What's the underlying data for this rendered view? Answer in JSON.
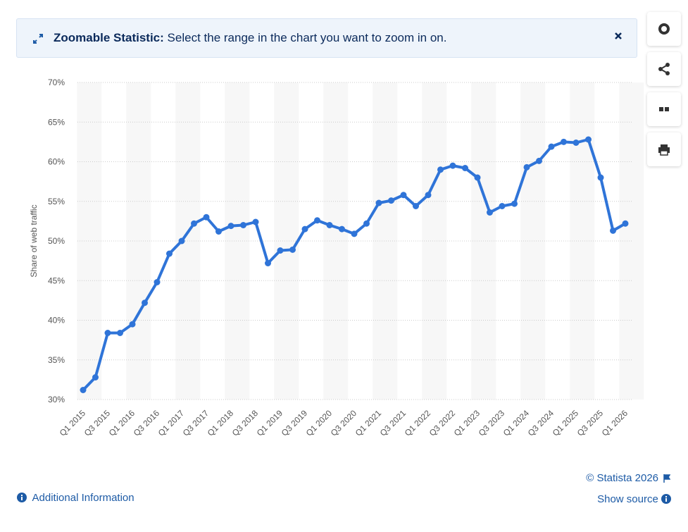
{
  "banner": {
    "title": "Zoomable Statistic:",
    "text": "Select the range in the chart you want to zoom in on."
  },
  "chart_data": {
    "type": "line",
    "y_label": "Share of web traffic",
    "categories": [
      "Q1 2015",
      null,
      "Q3 2015",
      null,
      "Q1 2016",
      null,
      "Q3 2016",
      null,
      "Q1 2017",
      null,
      "Q3 2017",
      null,
      "Q1 2018",
      null,
      "Q3 2018",
      null,
      "Q1 2019",
      null,
      "Q3 2019",
      null,
      "Q1 2020",
      null,
      "Q3 2020",
      null,
      "Q1 2021",
      null,
      "Q3 2021",
      null,
      "Q1 2022",
      null,
      "Q3 2022",
      null,
      "Q1 2023",
      null,
      "Q3 2023",
      null,
      "Q1 2024",
      null,
      "Q3 2024",
      null,
      "Q1 2025",
      null,
      "Q3 2025",
      null,
      "Q1 2026"
    ],
    "series": [
      {
        "name": "Share of web traffic",
        "color": "#2f74d8",
        "values": [
          31.2,
          32.8,
          38.4,
          38.4,
          39.5,
          42.2,
          44.8,
          48.4,
          50.0,
          52.2,
          53.0,
          51.2,
          51.9,
          52.0,
          52.4,
          47.2,
          48.8,
          48.9,
          51.5,
          52.6,
          52.0,
          51.5,
          50.9,
          52.2,
          54.8,
          55.1,
          55.8,
          54.4,
          55.8,
          59.0,
          59.5,
          59.2,
          58.0,
          53.6,
          54.4,
          54.7,
          59.3,
          60.1,
          61.9,
          62.5,
          62.4,
          62.8,
          58.0,
          51.3,
          52.2
        ]
      }
    ],
    "ylim": [
      30,
      70
    ],
    "yticks": [
      {
        "value": 30,
        "label": "30%"
      },
      {
        "value": 35,
        "label": "35%"
      },
      {
        "value": 40,
        "label": "40%"
      },
      {
        "value": 45,
        "label": "45%"
      },
      {
        "value": 50,
        "label": "50%"
      },
      {
        "value": 55,
        "label": "55%"
      },
      {
        "value": 60,
        "label": "60%"
      },
      {
        "value": 65,
        "label": "65%"
      },
      {
        "value": 70,
        "label": "70%"
      }
    ],
    "grid": true
  },
  "footer": {
    "info": "Additional Information",
    "copyright": "© Statista 2026",
    "source": "Show source"
  }
}
